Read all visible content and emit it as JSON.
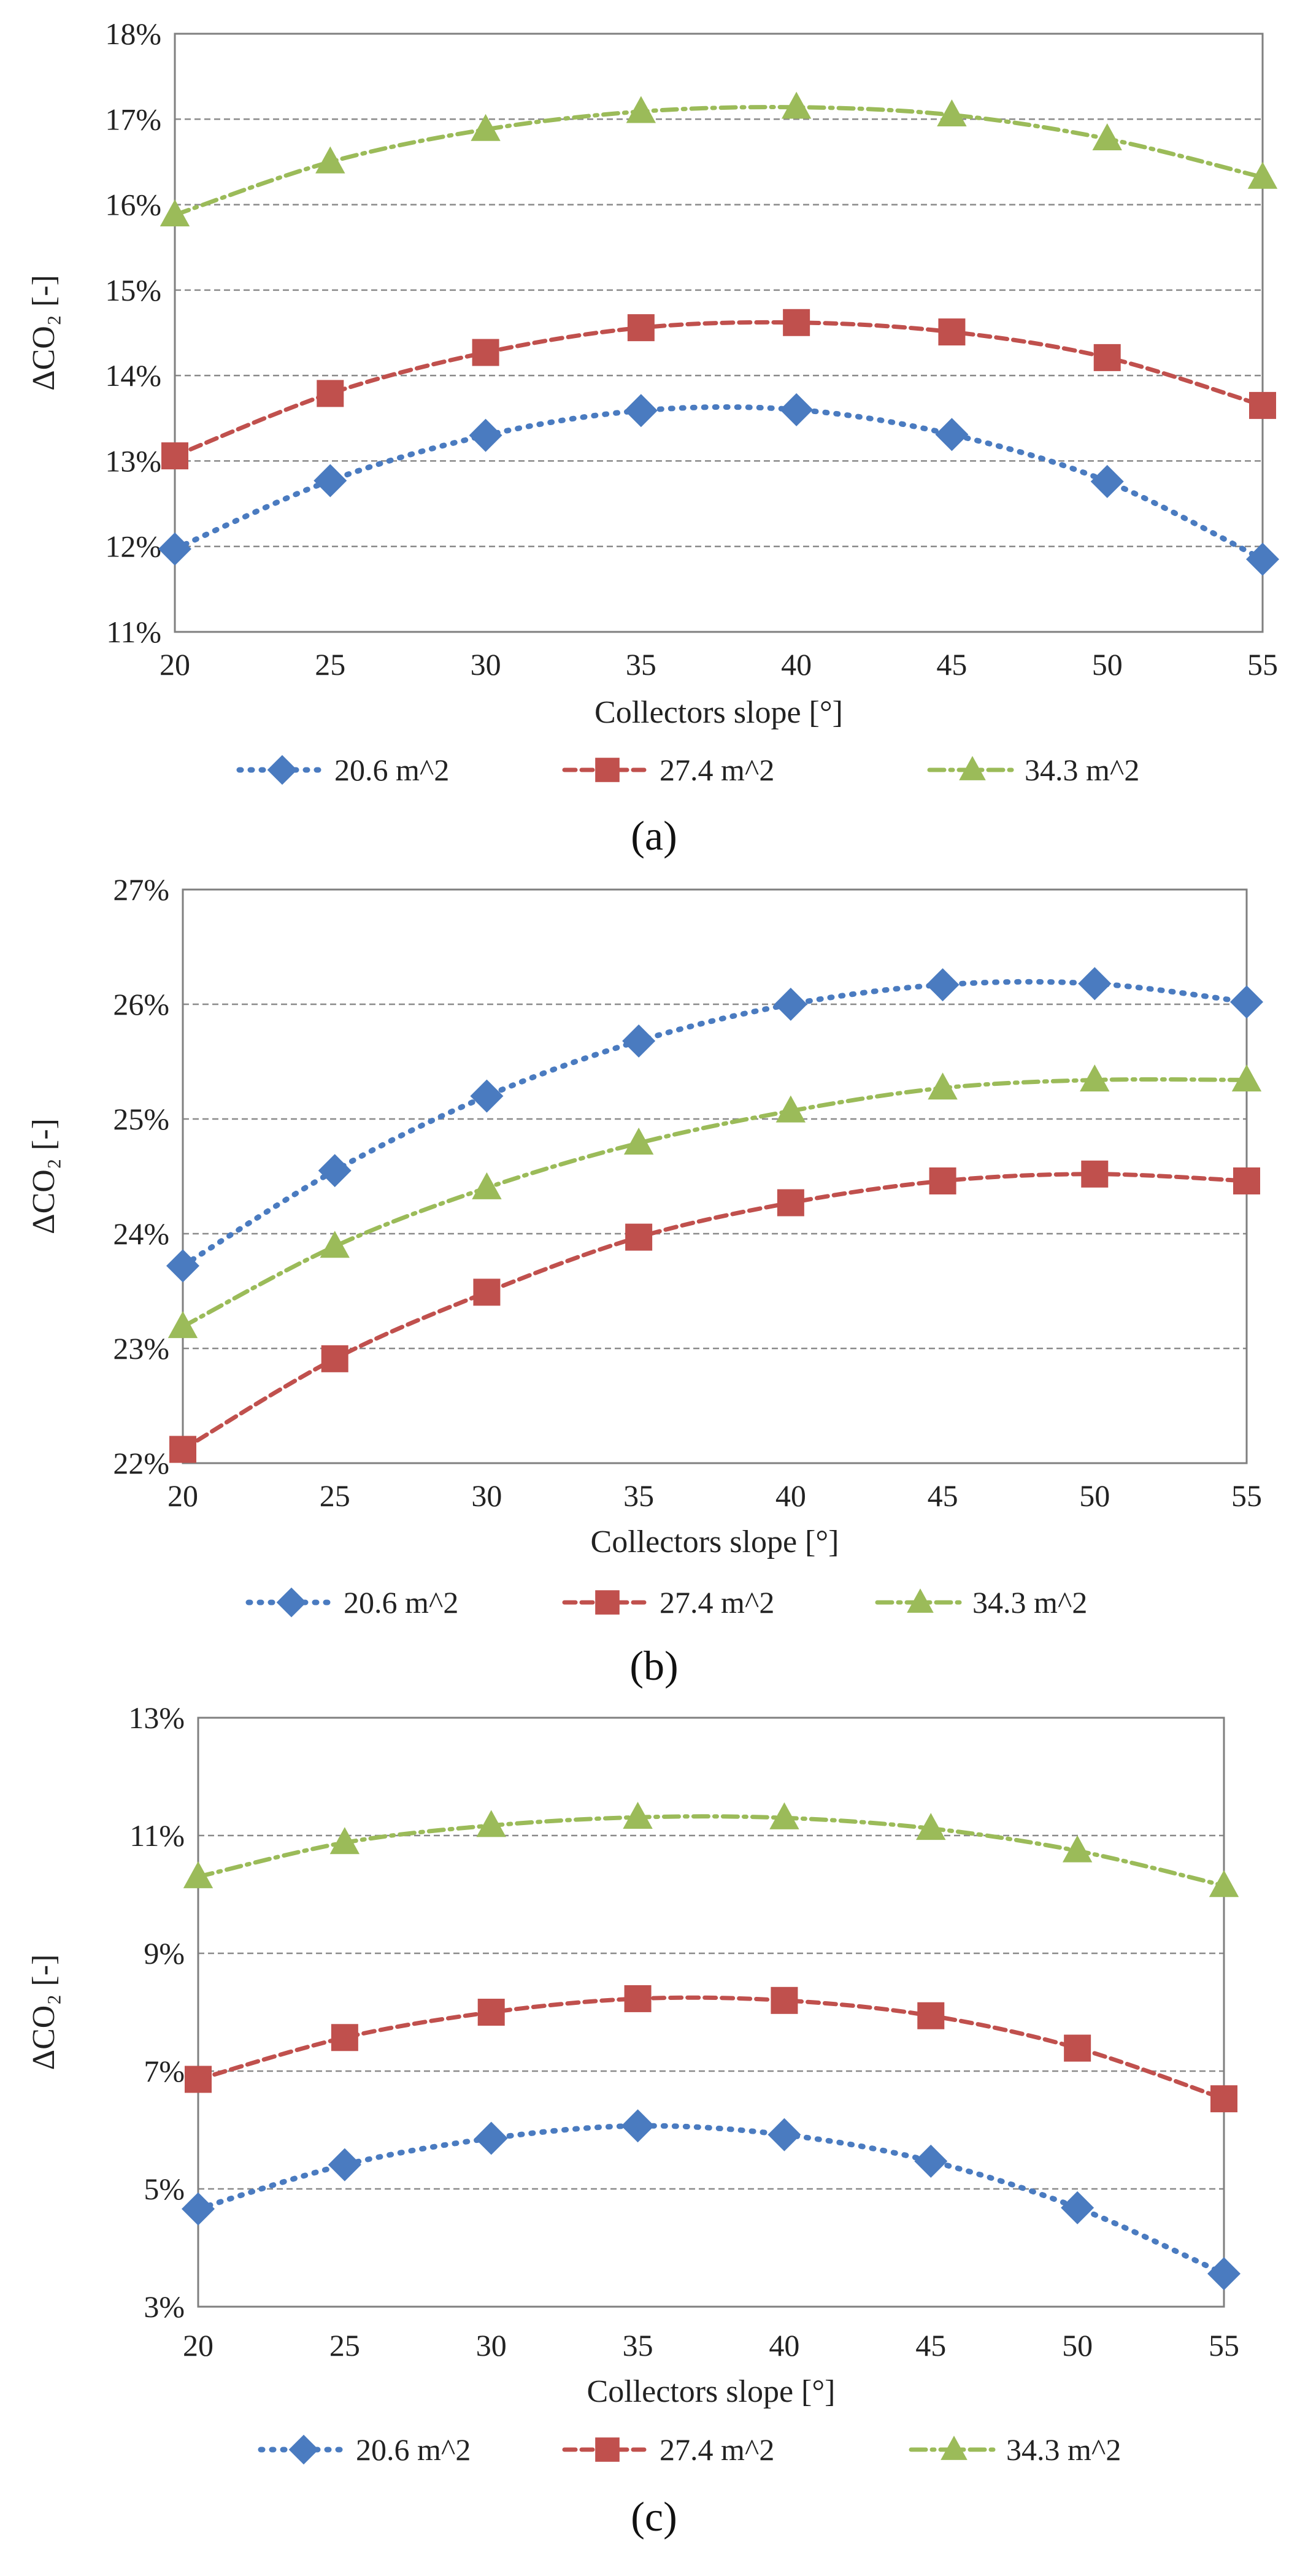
{
  "chart_data": [
    {
      "type": "line",
      "panel_label": "(a)",
      "xlabel": "Collectors slope [°]",
      "ylabel": "ΔCO₂ [-]",
      "x": [
        20,
        25,
        30,
        35,
        40,
        45,
        50,
        55
      ],
      "xlim": [
        20,
        55
      ],
      "ylim": [
        11,
        18
      ],
      "ytick_step": 1,
      "yticks": [
        "11%",
        "12%",
        "13%",
        "14%",
        "15%",
        "16%",
        "17%",
        "18%"
      ],
      "xticks": [
        "20",
        "25",
        "30",
        "35",
        "40",
        "45",
        "50",
        "55"
      ],
      "grid": true,
      "legend_position": "bottom",
      "series": [
        {
          "name": "20.6 m^2",
          "values": [
            11.97,
            12.77,
            13.3,
            13.59,
            13.6,
            13.31,
            12.76,
            11.85
          ]
        },
        {
          "name": "27.4 m^2",
          "values": [
            13.06,
            13.79,
            14.27,
            14.56,
            14.62,
            14.51,
            14.21,
            13.65
          ]
        },
        {
          "name": "34.3 m^2",
          "values": [
            15.88,
            16.5,
            16.88,
            17.09,
            17.14,
            17.05,
            16.77,
            16.32
          ]
        }
      ]
    },
    {
      "type": "line",
      "panel_label": "(b)",
      "xlabel": "Collectors slope [°]",
      "ylabel": "ΔCO₂ [-]",
      "x": [
        20,
        25,
        30,
        35,
        40,
        45,
        50,
        55
      ],
      "xlim": [
        20,
        55
      ],
      "ylim": [
        22,
        27
      ],
      "ytick_step": 1,
      "yticks": [
        "22%",
        "23%",
        "24%",
        "25%",
        "26%",
        "27%"
      ],
      "xticks": [
        "20",
        "25",
        "30",
        "35",
        "40",
        "45",
        "50",
        "55"
      ],
      "grid": true,
      "legend_position": "bottom",
      "series": [
        {
          "name": "20.6 m^2",
          "values": [
            23.72,
            24.55,
            25.2,
            25.68,
            26.0,
            26.17,
            26.18,
            26.02
          ]
        },
        {
          "name": "27.4 m^2",
          "values": [
            22.12,
            22.91,
            23.49,
            23.97,
            24.27,
            24.46,
            24.52,
            24.46
          ]
        },
        {
          "name": "34.3 m^2",
          "values": [
            23.19,
            23.89,
            24.4,
            24.79,
            25.07,
            25.27,
            25.34,
            25.34
          ]
        }
      ]
    },
    {
      "type": "line",
      "panel_label": "(c)",
      "xlabel": "Collectors slope [°]",
      "ylabel": "ΔCO₂ [-]",
      "x": [
        20,
        25,
        30,
        35,
        40,
        45,
        50,
        55
      ],
      "xlim": [
        20,
        55
      ],
      "ylim": [
        3,
        13
      ],
      "ytick_step": 2,
      "yticks": [
        "3%",
        "5%",
        "7%",
        "9%",
        "11%",
        "13%"
      ],
      "xticks": [
        "20",
        "25",
        "30",
        "35",
        "40",
        "45",
        "50",
        "55"
      ],
      "grid": true,
      "legend_position": "bottom",
      "series": [
        {
          "name": "20.6 m^2",
          "values": [
            4.66,
            5.41,
            5.86,
            6.07,
            5.92,
            5.47,
            4.68,
            3.56
          ]
        },
        {
          "name": "27.4 m^2",
          "values": [
            6.86,
            7.57,
            8.0,
            8.23,
            8.2,
            7.94,
            7.39,
            6.53
          ]
        },
        {
          "name": "34.3 m^2",
          "values": [
            10.3,
            10.88,
            11.17,
            11.31,
            11.3,
            11.12,
            10.74,
            10.15
          ]
        }
      ]
    }
  ],
  "colors": {
    "series_20_6": "#4a7bc0",
    "series_27_4": "#c0504d",
    "series_34_3": "#9bbb59"
  }
}
